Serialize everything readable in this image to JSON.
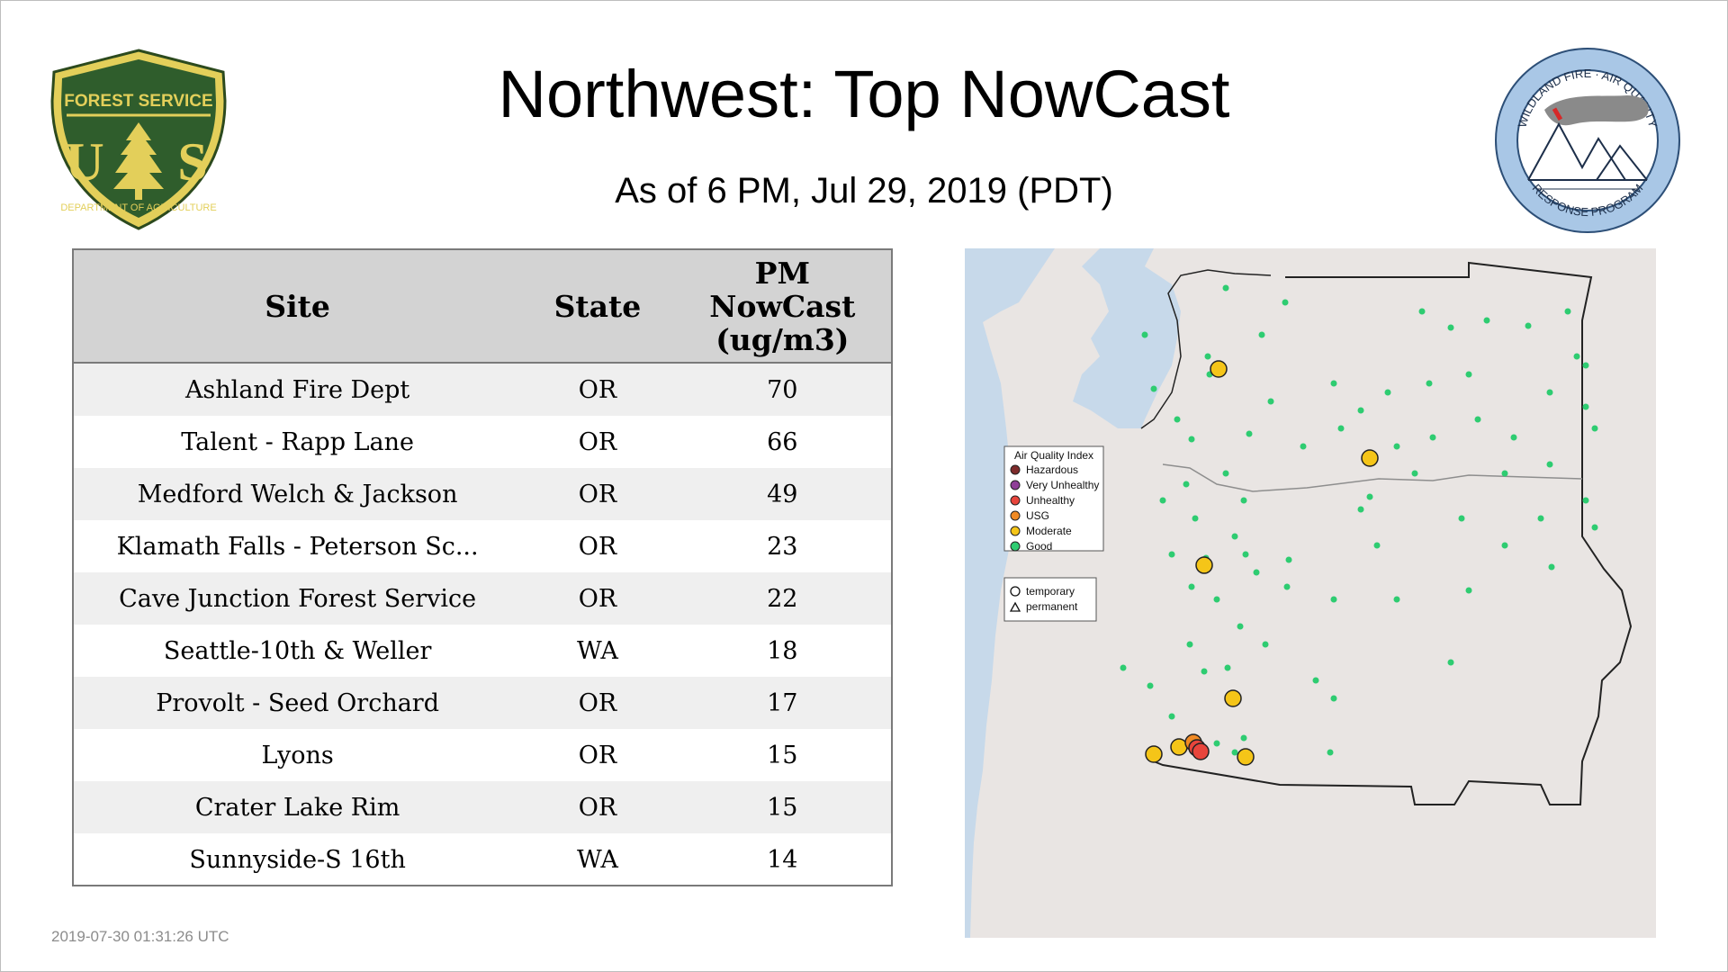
{
  "title": "Northwest: Top NowCast",
  "subtitle": "As of  6 PM, Jul 29, 2019 (PDT)",
  "timestamp": "2019-07-30 01:31:26 UTC",
  "logos": {
    "forest_service": {
      "top": "FOREST SERVICE",
      "left": "U",
      "right": "S",
      "bottom": "DEPARTMENT OF AGRICULTURE"
    },
    "wildland_fire": {
      "top": "WILDLAND FIRE · AIR QUALITY",
      "bottom": "RESPONSE PROGRAM"
    }
  },
  "table": {
    "headers": {
      "site": "Site",
      "state": "State",
      "nowcast": [
        "PM",
        "NowCast",
        "(ug/m3)"
      ]
    },
    "rows": [
      {
        "site": "Ashland Fire Dept",
        "state": "OR",
        "value": "70"
      },
      {
        "site": "Talent - Rapp Lane",
        "state": "OR",
        "value": "66"
      },
      {
        "site": "Medford Welch & Jackson",
        "state": "OR",
        "value": "49"
      },
      {
        "site": "Klamath Falls - Peterson Sc...",
        "state": "OR",
        "value": "23"
      },
      {
        "site": "Cave Junction Forest Service",
        "state": "OR",
        "value": "22"
      },
      {
        "site": "Seattle-10th & Weller",
        "state": "WA",
        "value": "18"
      },
      {
        "site": "Provolt - Seed Orchard",
        "state": "OR",
        "value": "17"
      },
      {
        "site": "Lyons",
        "state": "OR",
        "value": "15"
      },
      {
        "site": "Crater Lake Rim",
        "state": "OR",
        "value": "15"
      },
      {
        "site": "Sunnyside-S 16th",
        "state": "WA",
        "value": "14"
      }
    ]
  },
  "map": {
    "legend": {
      "title": "Air Quality Index",
      "items": [
        {
          "label": "Hazardous",
          "color": "#7e2b2b"
        },
        {
          "label": "Very Unhealthy",
          "color": "#8f3f97"
        },
        {
          "label": "Unhealthy",
          "color": "#e8453c"
        },
        {
          "label": "USG",
          "color": "#f08a24"
        },
        {
          "label": "Moderate",
          "color": "#f5c518"
        },
        {
          "label": "Good",
          "color": "#2ecc71"
        }
      ]
    },
    "shape_legend": {
      "temporary": "temporary",
      "permanent": "permanent"
    },
    "colors": {
      "water": "#c7d9ea",
      "land": "#e9e5e3",
      "border": "#222222",
      "good": "#2ecc71",
      "inactive": "#b9bec4"
    }
  }
}
